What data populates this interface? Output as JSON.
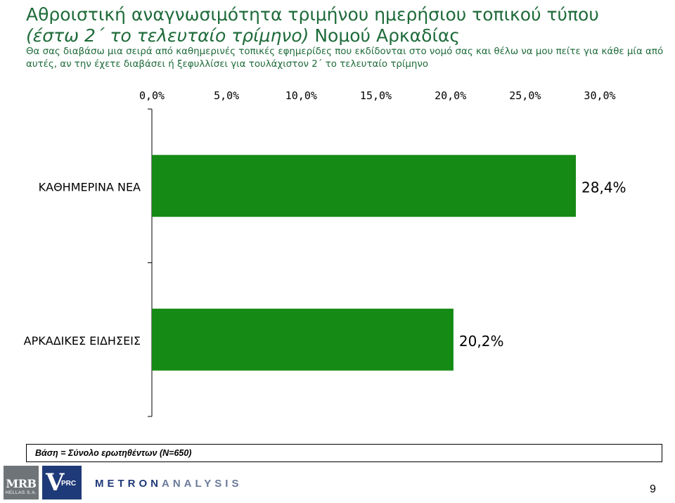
{
  "header": {
    "title_line1": "Αθροιστική αναγνωσιμότητα τριμήνου ημερήσιου τοπικού τύπου",
    "title_line2_italic": "(έστω 2΄ το τελευταίο τρίμηνο)",
    "title_line2_rest": " Νομού Αρκαδίας",
    "subtitle_line1": "Θα σας διαβάσω μια σειρά από καθημερινές τοπικές εφημερίδες που εκδίδονται στο νομό σας και θέλω να μου πείτε για κάθε μία από",
    "subtitle_line2": "αυτές, αν την έχετε διαβάσει ή ξεφυλλίσει για τουλάχιστον 2΄ το τελευταίο τρίμηνο"
  },
  "chart_data": {
    "type": "bar",
    "orientation": "horizontal",
    "categories": [
      "ΚΑΘΗΜΕΡΙΝΑ ΝΕΑ",
      "ΑΡΚΑΔΙΚΕΣ ΕΙΔΗΣΕΙΣ"
    ],
    "values": [
      28.4,
      20.2
    ],
    "value_labels": [
      "28,4%",
      "20,2%"
    ],
    "x_ticks": [
      0,
      5,
      10,
      15,
      20,
      25,
      30
    ],
    "x_tick_labels": [
      "0,0%",
      "5,0%",
      "10,0%",
      "15,0%",
      "20,0%",
      "25,0%",
      "30,0%"
    ],
    "xlim": [
      0,
      30
    ],
    "x_axis_position": "top",
    "grid": false,
    "bar_color": "#158a15"
  },
  "footer": {
    "base_text": "Βάση = Σύνολο ερωτηθέντων (N=650)",
    "page_number": "9"
  },
  "logos": {
    "mrb_line1": "MRB",
    "mrb_line2": "HELLAS S.A.",
    "vprc_v": "V",
    "vprc_rest": "PRC",
    "metron_a": "METRON",
    "metron_b": "ANALYSIS"
  }
}
